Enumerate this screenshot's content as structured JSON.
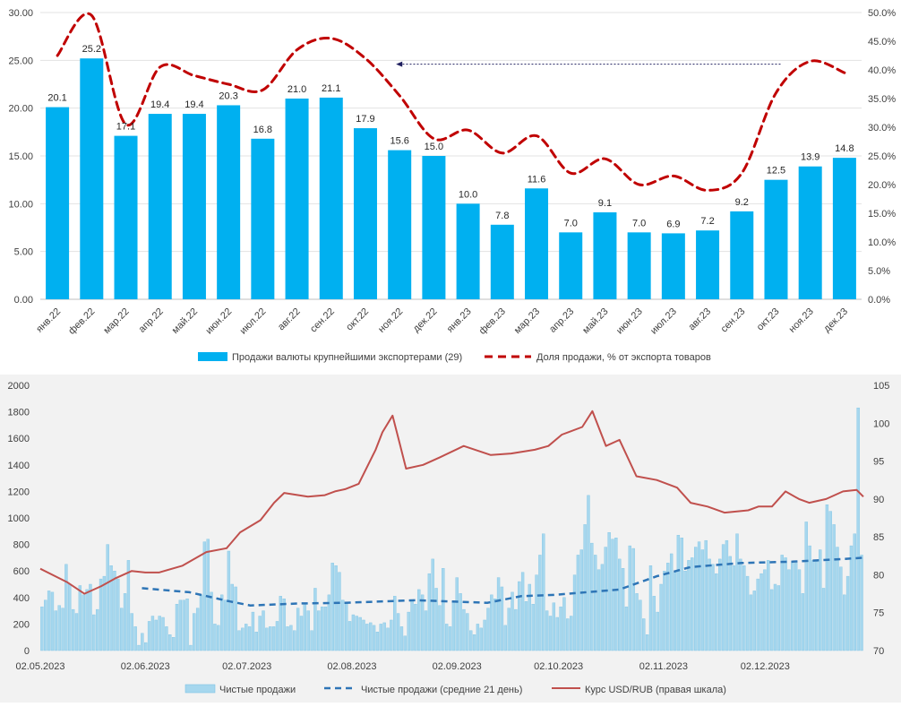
{
  "chart_data": [
    {
      "type": "bar",
      "categories": [
        "янв.22",
        "фев.22",
        "мар.22",
        "апр.22",
        "май.22",
        "июн.22",
        "июл.22",
        "авг.22",
        "сен.22",
        "окт.22",
        "ноя.22",
        "дек.22",
        "янв.23",
        "фев.23",
        "мар.23",
        "апр.23",
        "май.23",
        "июн.23",
        "июл.23",
        "авг.23",
        "сен.23",
        "окт.23",
        "ноя.23",
        "дек.23"
      ],
      "series": [
        {
          "name": "Продажи валюты крупнейшими экспортерами (29)",
          "type": "bar",
          "axis": "left",
          "color": "#00b0f0",
          "values": [
            20.1,
            25.2,
            17.1,
            19.4,
            19.4,
            20.3,
            16.8,
            21.0,
            21.1,
            17.9,
            15.6,
            15.0,
            10.0,
            7.8,
            11.6,
            7.0,
            9.1,
            7.0,
            6.9,
            7.2,
            9.2,
            12.5,
            13.9,
            14.8
          ],
          "labels": [
            "20.1",
            "25.2",
            "17.1",
            "19.4",
            "19.4",
            "20.3",
            "16.8",
            "21.0",
            "21.1",
            "17.9",
            "15.6",
            "15.0",
            "10.0",
            "7.8",
            "11.6",
            "7.0",
            "9.1",
            "7.0",
            "6.9",
            "7.2",
            "9.2",
            "12.5",
            "13.9",
            "14.8"
          ]
        },
        {
          "name": "Доля продажи, % от экспорта товаров",
          "type": "line",
          "style": "dashed",
          "axis": "right",
          "color": "#c00000",
          "values": [
            42.5,
            49.5,
            30.5,
            40.5,
            39.0,
            37.5,
            36.5,
            43.5,
            45.5,
            42.0,
            35.5,
            28.0,
            29.5,
            25.5,
            28.5,
            22.0,
            24.5,
            20.0,
            21.5,
            19.0,
            22.0,
            36.0,
            41.5,
            39.5
          ]
        }
      ],
      "left_axis": {
        "min": 0,
        "max": 30,
        "ticks": [
          "0.00",
          "5.00",
          "10.00",
          "15.00",
          "20.00",
          "25.00",
          "30.00"
        ]
      },
      "right_axis": {
        "min": 0,
        "max": 50,
        "ticks": [
          "0.0%",
          "5.0%",
          "10.0%",
          "15.0%",
          "20.0%",
          "25.0%",
          "30.0%",
          "35.0%",
          "40.0%",
          "45.0%",
          "50.0%"
        ]
      },
      "annotation": {
        "type": "arrow",
        "from_category": "окт.23",
        "to_category": "ноя.22",
        "value_right": 41.0
      },
      "grid": "horizontal",
      "legend": "bottom"
    },
    {
      "type": "bar",
      "x_ticks": [
        "02.05.2023",
        "02.06.2023",
        "02.07.2023",
        "02.08.2023",
        "02.09.2023",
        "02.10.2023",
        "02.11.2023",
        "02.12.2023"
      ],
      "x_range": [
        "2023-05-02",
        "2023-12-31"
      ],
      "left_axis": {
        "min": 0,
        "max": 2000,
        "ticks": [
          "0",
          "200",
          "400",
          "600",
          "800",
          "1000",
          "1200",
          "1400",
          "1600",
          "1800",
          "2000"
        ]
      },
      "right_axis": {
        "min": 70,
        "max": 105,
        "ticks": [
          "70",
          "75",
          "80",
          "85",
          "90",
          "95",
          "100",
          "105"
        ]
      },
      "grid": "none",
      "legend": "bottom",
      "series": [
        {
          "name": "Чистые продажи",
          "type": "bar",
          "axis": "left",
          "color": "#a6d7ee",
          "values": [
            330,
            380,
            450,
            440,
            300,
            340,
            320,
            650,
            500,
            310,
            280,
            490,
            420,
            460,
            500,
            270,
            310,
            540,
            560,
            800,
            640,
            600,
            540,
            320,
            430,
            680,
            280,
            180,
            40,
            130,
            60,
            220,
            260,
            230,
            260,
            250,
            180,
            120,
            100,
            350,
            380,
            380,
            390,
            40,
            280,
            320,
            420,
            820,
            840,
            440,
            200,
            190,
            420,
            380,
            750,
            500,
            480,
            150,
            170,
            200,
            180,
            290,
            140,
            260,
            300,
            170,
            180,
            180,
            220,
            410,
            390,
            180,
            190,
            150,
            320,
            260,
            350,
            300,
            150,
            470,
            300,
            330,
            330,
            420,
            660,
            640,
            590,
            380,
            360,
            220,
            270,
            260,
            250,
            230,
            200,
            210,
            190,
            140,
            200,
            210,
            170,
            230,
            410,
            280,
            180,
            110,
            290,
            380,
            350,
            460,
            420,
            300,
            580,
            690,
            470,
            340,
            620,
            200,
            180,
            370,
            550,
            430,
            310,
            280,
            150,
            120,
            200,
            170,
            230,
            320,
            420,
            390,
            550,
            480,
            190,
            320,
            440,
            310,
            520,
            590,
            370,
            500,
            350,
            570,
            720,
            880,
            300,
            260,
            360,
            250,
            330,
            400,
            240,
            260,
            570,
            720,
            760,
            950,
            1170,
            810,
            720,
            610,
            650,
            780,
            890,
            840,
            850,
            690,
            620,
            330,
            790,
            770,
            430,
            380,
            240,
            120,
            640,
            410,
            290,
            500,
            600,
            660,
            730,
            590,
            870,
            850,
            600,
            680,
            700,
            780,
            820,
            760,
            830,
            690,
            650,
            580,
            690,
            800,
            830,
            710,
            640,
            880,
            690,
            640,
            560,
            420,
            450,
            540,
            580,
            610,
            680,
            460,
            500,
            490,
            720,
            700,
            610,
            660,
            660,
            610,
            430,
            970,
            790,
            680,
            670,
            760,
            470,
            1100,
            1050,
            950,
            780,
            630,
            420,
            560,
            790,
            880,
            1830,
            720
          ]
        },
        {
          "name": "Чистые продажи (средние 21 день)",
          "type": "line",
          "style": "dashed",
          "axis": "left",
          "color": "#2e75b6",
          "x_dates": [
            "2023-06-01",
            "2023-06-15",
            "2023-06-27",
            "2023-07-03",
            "2023-07-17",
            "2023-07-31",
            "2023-08-21",
            "2023-09-11",
            "2023-09-21",
            "2023-10-01",
            "2023-10-20",
            "2023-10-31",
            "2023-11-10",
            "2023-11-25",
            "2023-12-10",
            "2023-12-25",
            "2023-12-31"
          ],
          "values": [
            470,
            440,
            370,
            340,
            355,
            360,
            380,
            360,
            410,
            420,
            460,
            560,
            630,
            660,
            670,
            690,
            700
          ]
        },
        {
          "name": "Курс USD/RUB (правая шкала)",
          "type": "line",
          "axis": "right",
          "color": "#c0504d",
          "x_dates": [
            "2023-05-02",
            "2023-05-10",
            "2023-05-15",
            "2023-05-20",
            "2023-05-24",
            "2023-05-29",
            "2023-06-02",
            "2023-06-06",
            "2023-06-13",
            "2023-06-20",
            "2023-06-26",
            "2023-06-30",
            "2023-07-06",
            "2023-07-10",
            "2023-07-13",
            "2023-07-20",
            "2023-07-25",
            "2023-07-28",
            "2023-07-31",
            "2023-08-04",
            "2023-08-09",
            "2023-08-11",
            "2023-08-14",
            "2023-08-16",
            "2023-08-18",
            "2023-08-23",
            "2023-08-28",
            "2023-09-04",
            "2023-09-12",
            "2023-09-18",
            "2023-09-25",
            "2023-09-29",
            "2023-10-03",
            "2023-10-09",
            "2023-10-12",
            "2023-10-16",
            "2023-10-20",
            "2023-10-25",
            "2023-10-31",
            "2023-11-06",
            "2023-11-10",
            "2023-11-15",
            "2023-11-20",
            "2023-11-27",
            "2023-11-30",
            "2023-12-04",
            "2023-12-08",
            "2023-12-12",
            "2023-12-15",
            "2023-12-20",
            "2023-12-25",
            "2023-12-29",
            "2023-12-31"
          ],
          "values": [
            80.8,
            79.0,
            77.5,
            78.5,
            79.5,
            80.5,
            80.3,
            80.3,
            81.2,
            83.0,
            83.5,
            85.6,
            87.2,
            89.5,
            90.8,
            90.3,
            90.5,
            91.0,
            91.3,
            92.0,
            96.5,
            98.8,
            101.0,
            97.5,
            94.0,
            94.5,
            95.5,
            97.0,
            95.8,
            96.0,
            96.5,
            97.0,
            98.5,
            99.5,
            101.6,
            97.0,
            97.8,
            93.0,
            92.5,
            91.5,
            89.5,
            89.0,
            88.2,
            88.5,
            89.0,
            89.0,
            91.0,
            90.0,
            89.5,
            90.0,
            91.0,
            91.2,
            90.3
          ]
        }
      ]
    }
  ]
}
